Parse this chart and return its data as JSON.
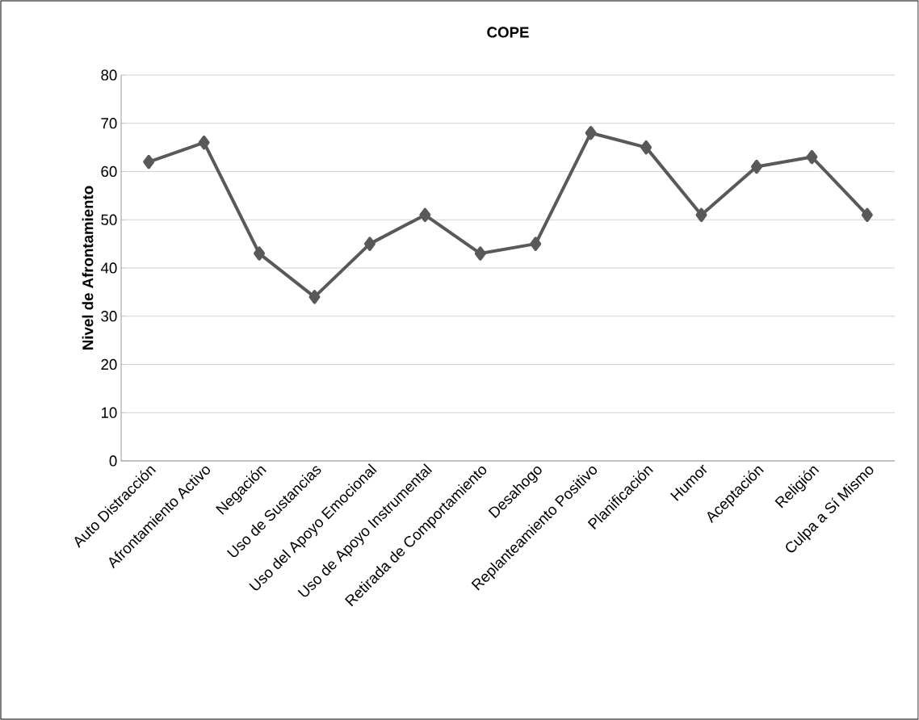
{
  "chart_data": {
    "type": "line",
    "title": "COPE",
    "ylabel": "Nivel de Afrontamiento",
    "categories": [
      "Auto Distracción",
      "Afrontamiento Activo",
      "Negación",
      "Uso de Sustancias",
      "Uso del Apoyo Emocional",
      "Uso de Apoyo Instrumental",
      "Retirada de Comportamiento",
      "Desahogo",
      "Replanteamiento Positivo",
      "Planificación",
      "Humor",
      "Aceptación",
      "Religión",
      "Culpa a Sí Mismo"
    ],
    "series": [
      {
        "color": "#595959",
        "values": [
          62,
          66,
          43,
          34,
          45,
          51,
          43,
          45,
          68,
          65,
          51,
          61,
          63,
          51
        ]
      }
    ],
    "ylim": [
      0,
      80
    ],
    "yticks": [
      0,
      10,
      20,
      30,
      40,
      50,
      60,
      70,
      80
    ],
    "grid": "y",
    "marker": "diamond",
    "line_style": "solid"
  }
}
